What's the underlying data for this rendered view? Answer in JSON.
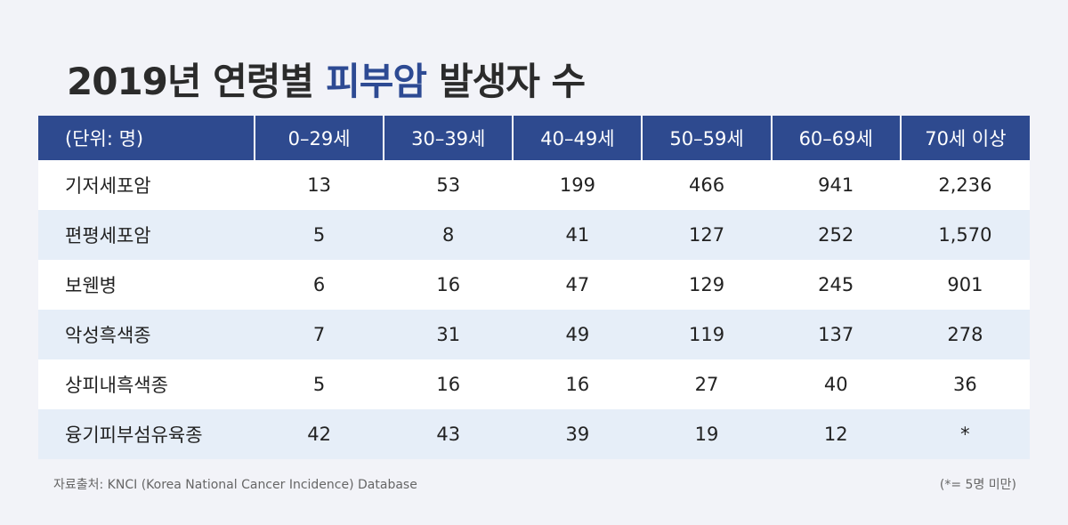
{
  "title": {
    "before": "2019년 연령별",
    "highlight": "피부암",
    "after": "발생자 수"
  },
  "table": {
    "header": [
      "(단위: 명)",
      "0–29세",
      "30–39세",
      "40–49세",
      "50–59세",
      "60–69세",
      "70세 이상"
    ],
    "rows": [
      [
        "기저세포암",
        13,
        53,
        199,
        466,
        941,
        "2,236"
      ],
      [
        "편평세포암",
        5,
        8,
        41,
        127,
        252,
        "1,570"
      ],
      [
        "보웬병",
        6,
        16,
        47,
        129,
        245,
        901
      ],
      [
        "악성흑색종",
        7,
        31,
        49,
        119,
        137,
        278
      ],
      [
        "상피내흑색종",
        5,
        16,
        16,
        27,
        40,
        36
      ],
      [
        "융기피부섬유육종",
        42,
        43,
        39,
        19,
        12,
        "*"
      ]
    ]
  },
  "source": "자료출처: KNCI (Korea National Cancer Incidence) Database",
  "note": "(*= 5명 미만)"
}
